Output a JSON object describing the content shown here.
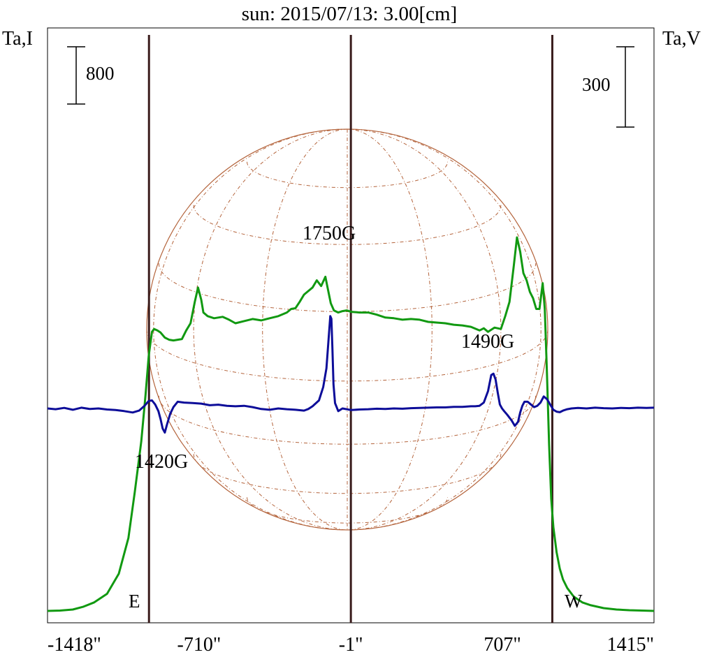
{
  "chart_data": {
    "type": "line",
    "title": "sun: 2015/07/13: 3.00[cm]",
    "title_color": "#1c1c6e",
    "xlabel": "",
    "left_axis_label": "Ta,I",
    "right_axis_label": "Ta,V",
    "x_ticks": [
      {
        "value": -1418,
        "label": "-1418\""
      },
      {
        "value": -710,
        "label": "-710\""
      },
      {
        "value": -1,
        "label": "-1\""
      },
      {
        "value": 707,
        "label": "707\""
      },
      {
        "value": 1415,
        "label": "1415\""
      }
    ],
    "xlim": [
      -1418,
      1415
    ],
    "scale_bars": [
      {
        "axis": "I",
        "label": "800",
        "length": 800
      },
      {
        "axis": "V",
        "label": "300",
        "length": 300
      }
    ],
    "limb_markers": [
      {
        "label": "E",
        "x": -944
      },
      {
        "label": "W",
        "x": 940
      }
    ],
    "center_line": {
      "x": -1
    },
    "annotations": [
      {
        "text": "1750G",
        "x": -95,
        "y_series": "V"
      },
      {
        "text": "1490G",
        "x": 650,
        "y_series": "V"
      },
      {
        "text": "1420G",
        "x": -850,
        "y_series": "V"
      }
    ],
    "grid": false,
    "colors": {
      "intensity": "#119911",
      "polarization": "#0d0d99",
      "vertical_lines": "#3a1c1c",
      "solar_disk": "#b4643c",
      "frame": "#000000"
    },
    "series": [
      {
        "name": "",
        "key": "I",
        "color": "#119911",
        "x": [
          -1418,
          -1360,
          -1300,
          -1250,
          -1200,
          -1140,
          -1085,
          -1040,
          -1010,
          -980,
          -960,
          -945,
          -930,
          -920,
          -905,
          -890,
          -870,
          -850,
          -830,
          -810,
          -790,
          -770,
          -750,
          -730,
          -715,
          -700,
          -690,
          -670,
          -640,
          -600,
          -570,
          -540,
          -500,
          -460,
          -420,
          -380,
          -340,
          -300,
          -280,
          -260,
          -240,
          -220,
          -200,
          -180,
          -160,
          -140,
          -120,
          -110,
          -95,
          -80,
          -60,
          -40,
          -20,
          0,
          40,
          80,
          120,
          160,
          200,
          240,
          280,
          320,
          360,
          400,
          440,
          480,
          520,
          560,
          600,
          620,
          640,
          670,
          700,
          720,
          740,
          760,
          775,
          790,
          805,
          820,
          835,
          850,
          865,
          880,
          895,
          905,
          915,
          925,
          935,
          945,
          960,
          975,
          990,
          1010,
          1040,
          1080,
          1120,
          1180,
          1240,
          1300,
          1360,
          1415
        ],
        "y": [
          -20,
          -15,
          0,
          40,
          100,
          220,
          500,
          1000,
          1650,
          2350,
          3000,
          3550,
          3880,
          3920,
          3900,
          3870,
          3800,
          3770,
          3760,
          3770,
          3780,
          3900,
          4000,
          4300,
          4500,
          4330,
          4150,
          4100,
          4070,
          4090,
          4050,
          4000,
          4030,
          4060,
          4040,
          4070,
          4100,
          4150,
          4200,
          4210,
          4300,
          4400,
          4450,
          4500,
          4600,
          4520,
          4650,
          4500,
          4280,
          4180,
          4150,
          4170,
          4180,
          4160,
          4150,
          4150,
          4120,
          4080,
          4070,
          4050,
          4060,
          4050,
          4020,
          4010,
          4000,
          3980,
          3970,
          3950,
          3900,
          3930,
          3880,
          3940,
          3920,
          4100,
          4300,
          4800,
          5200,
          5000,
          4700,
          4600,
          4440,
          4350,
          4200,
          4200,
          4560,
          4200,
          3300,
          2300,
          1550,
          1150,
          800,
          570,
          420,
          300,
          180,
          100,
          60,
          20,
          0,
          -10,
          -15,
          -20
        ]
      },
      {
        "name": "",
        "key": "V",
        "color": "#0d0d99",
        "x": [
          -1418,
          -1380,
          -1340,
          -1300,
          -1260,
          -1220,
          -1180,
          -1140,
          -1100,
          -1060,
          -1020,
          -990,
          -965,
          -945,
          -930,
          -915,
          -900,
          -890,
          -880,
          -870,
          -860,
          -845,
          -830,
          -810,
          -780,
          -740,
          -700,
          -660,
          -620,
          -580,
          -540,
          -500,
          -460,
          -420,
          -380,
          -340,
          -300,
          -260,
          -220,
          -200,
          -180,
          -150,
          -130,
          -115,
          -105,
          -97,
          -92,
          -87,
          -82,
          -75,
          -60,
          -40,
          0,
          40,
          80,
          120,
          160,
          200,
          240,
          280,
          320,
          360,
          400,
          440,
          480,
          520,
          560,
          580,
          600,
          620,
          640,
          655,
          665,
          675,
          685,
          695,
          705,
          715,
          730,
          750,
          765,
          780,
          790,
          800,
          810,
          825,
          840,
          855,
          870,
          885,
          900,
          915,
          930,
          945,
          960,
          975,
          990,
          1010,
          1030,
          1060,
          1100,
          1140,
          1180,
          1220,
          1260,
          1300,
          1340,
          1380,
          1415
        ],
        "y": [
          0,
          -3,
          2,
          -5,
          3,
          -2,
          0,
          -4,
          -6,
          -10,
          -15,
          -8,
          10,
          28,
          30,
          15,
          -10,
          -40,
          -75,
          -90,
          -60,
          -20,
          5,
          25,
          22,
          20,
          18,
          12,
          14,
          10,
          8,
          10,
          5,
          -2,
          -5,
          0,
          -3,
          -5,
          -8,
          -2,
          8,
          30,
          80,
          150,
          260,
          345,
          335,
          220,
          90,
          20,
          -10,
          0,
          -6,
          -4,
          -3,
          -1,
          -2,
          0,
          -1,
          1,
          2,
          3,
          4,
          4,
          6,
          6,
          8,
          8,
          10,
          22,
          65,
          125,
          130,
          108,
          60,
          15,
          0,
          -10,
          -24,
          -45,
          -65,
          -50,
          -15,
          10,
          25,
          25,
          15,
          5,
          10,
          22,
          45,
          35,
          15,
          -5,
          -12,
          -14,
          -8,
          -3,
          0,
          2,
          0,
          3,
          1,
          0,
          2,
          1,
          3,
          2,
          3
        ]
      }
    ]
  }
}
